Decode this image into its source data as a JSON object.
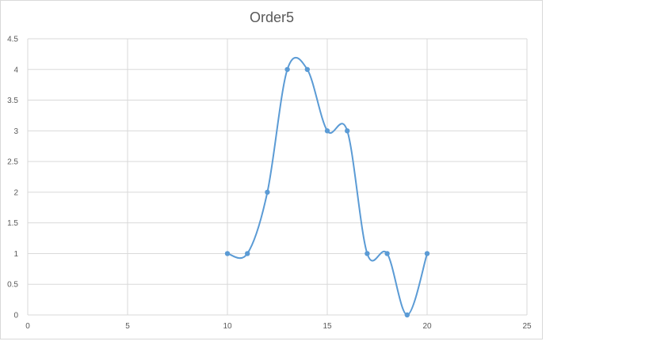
{
  "chart_data": {
    "type": "scatter",
    "title": "Order5",
    "xlabel": "",
    "ylabel": "",
    "xlim": [
      0,
      25
    ],
    "ylim": [
      0,
      4.5
    ],
    "x_ticks": [
      "0",
      "5",
      "10",
      "15",
      "20",
      "25"
    ],
    "y_ticks": [
      "0",
      "0.5",
      "1",
      "1.5",
      "2",
      "2.5",
      "3",
      "3.5",
      "4",
      "4.5"
    ],
    "grid": true,
    "smooth_lines": true,
    "series": [
      {
        "color": "#5B9BD5",
        "x": [
          10,
          11,
          12,
          13,
          14,
          15,
          16,
          17,
          18,
          19,
          20
        ],
        "y": [
          1,
          1,
          2,
          4,
          4,
          3,
          3,
          1,
          1,
          0,
          1
        ]
      }
    ]
  }
}
